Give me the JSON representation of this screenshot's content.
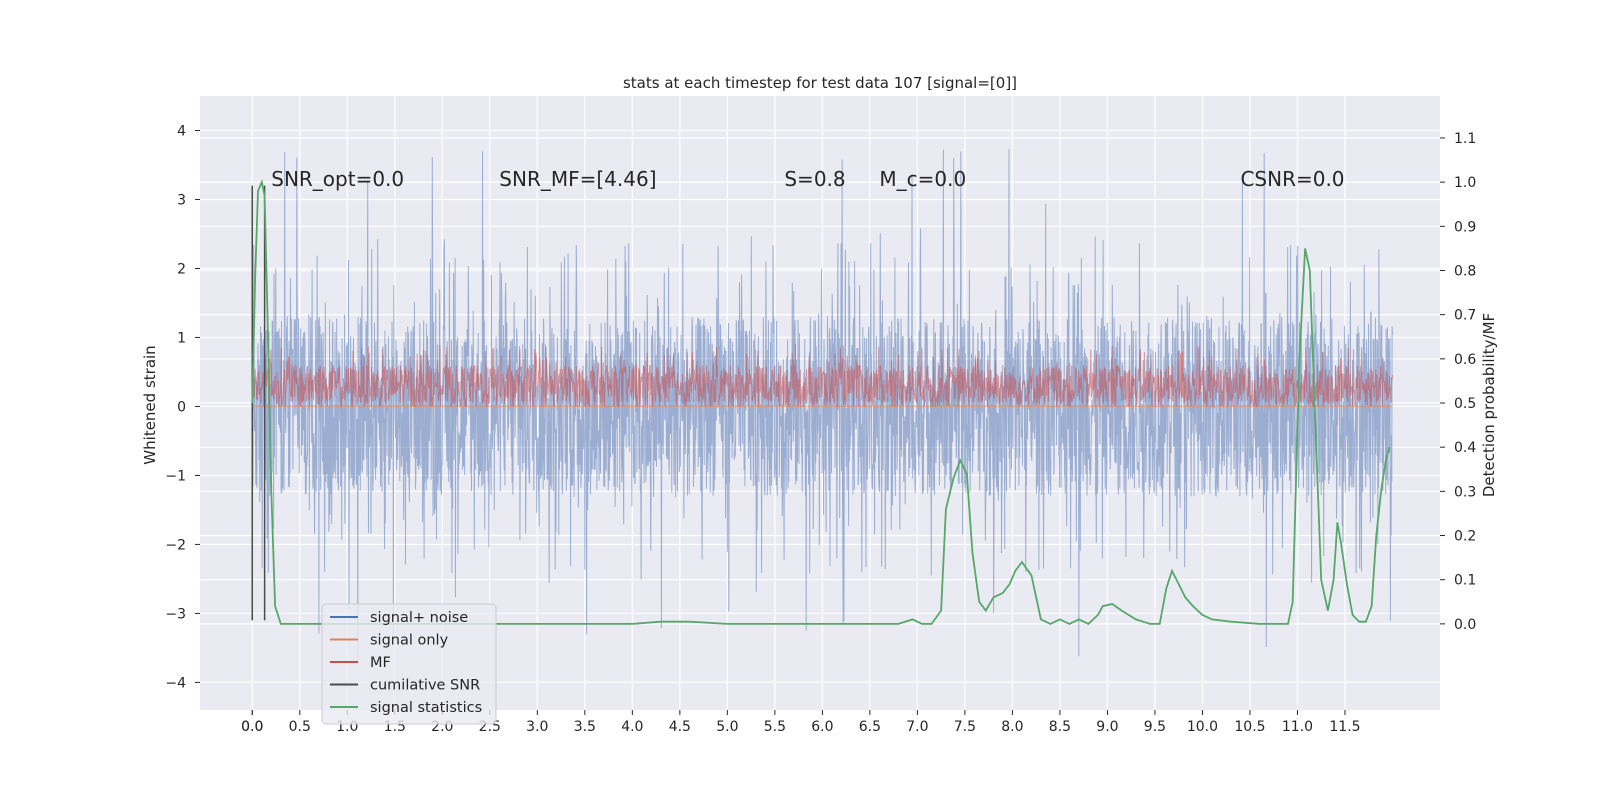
{
  "chart_data": {
    "type": "line",
    "title": "stats at each timestep for test data 107 [signal=[0]]",
    "xlabel": "",
    "ylabel": "Whitened strain",
    "y2label": "Detection probability/MF",
    "xlim": [
      -0.55,
      12.5
    ],
    "ylim": [
      -4.4,
      4.5
    ],
    "y2lim": [
      -0.195,
      1.195
    ],
    "xticks": [
      "0.0",
      "0.0",
      "0.5",
      "1.0",
      "1.5",
      "2.0",
      "2.5",
      "3.0",
      "3.5",
      "4.0",
      "4.5",
      "5.0",
      "5.5",
      "6.0",
      "6.5",
      "7.0",
      "7.5",
      "8.0",
      "8.5",
      "9.0",
      "9.5",
      "10.0",
      "10.5",
      "11.0",
      "11.5"
    ],
    "xtick_values": [
      0.0,
      0.0,
      0.5,
      1.0,
      1.5,
      2.0,
      2.5,
      3.0,
      3.5,
      4.0,
      4.5,
      5.0,
      5.5,
      6.0,
      6.5,
      7.0,
      7.5,
      8.0,
      8.5,
      9.0,
      9.5,
      10.0,
      10.5,
      11.0,
      11.5
    ],
    "yticks": [
      -4,
      -3,
      -2,
      -1,
      0,
      1,
      2,
      3,
      4
    ],
    "ytick_labels": [
      "−4",
      "−3",
      "−2",
      "−1",
      "0",
      "1",
      "2",
      "3",
      "4"
    ],
    "y2ticks": [
      0.0,
      0.1,
      0.2,
      0.3,
      0.4,
      0.5,
      0.6,
      0.7,
      0.8,
      0.9,
      1.0,
      1.1
    ],
    "y2tick_labels": [
      "0.0",
      "0.1",
      "0.2",
      "0.3",
      "0.4",
      "0.5",
      "0.6",
      "0.7",
      "0.8",
      "0.9",
      "1.0",
      "1.1"
    ],
    "grid": true,
    "legend_position": "lower-left",
    "annotations": [
      {
        "text": "SNR_opt=0.0",
        "x": 0.2,
        "y": 3.3
      },
      {
        "text": "SNR_MF=[4.46]",
        "x": 2.6,
        "y": 3.3
      },
      {
        "text": "S=0.8",
        "x": 5.6,
        "y": 3.3
      },
      {
        "text": "M_c=0.0",
        "x": 6.6,
        "y": 3.3
      },
      {
        "text": "CSNR=0.0",
        "x": 10.4,
        "y": 3.3
      }
    ],
    "series": [
      {
        "name": "signal+ noise",
        "color": "#4c72b0",
        "axis": "left",
        "type": "noise",
        "x_range": [
          0.0,
          12.0
        ],
        "y_core": [
          -1.3,
          1.3
        ],
        "y_extremes": [
          -4.0,
          4.1
        ]
      },
      {
        "name": "signal only",
        "color": "#dd8452",
        "axis": "left",
        "type": "flat",
        "x_range": [
          0.0,
          12.0
        ],
        "y": 0.0
      },
      {
        "name": "MF",
        "color": "#c44e52",
        "axis": "left",
        "type": "noise",
        "x_range": [
          0.0,
          12.0
        ],
        "y_core": [
          0.0,
          0.6
        ],
        "y_extremes": [
          0.0,
          0.95
        ]
      },
      {
        "name": "cumilative SNR",
        "color": "#4c4c4c",
        "axis": "left",
        "type": "vline",
        "x": [
          0.0,
          0.13
        ],
        "y_range": [
          -3.1,
          3.2
        ]
      },
      {
        "name": "signal statistics",
        "color": "#55a868",
        "axis": "right",
        "type": "line",
        "x": [
          0.0,
          0.03,
          0.06,
          0.1,
          0.13,
          0.16,
          0.2,
          0.24,
          0.3,
          0.4,
          0.6,
          1.0,
          2.0,
          3.0,
          4.0,
          4.3,
          4.6,
          5.0,
          6.0,
          6.8,
          6.95,
          7.05,
          7.15,
          7.25,
          7.3,
          7.38,
          7.45,
          7.52,
          7.58,
          7.65,
          7.72,
          7.8,
          7.9,
          7.97,
          8.03,
          8.1,
          8.2,
          8.3,
          8.4,
          8.5,
          8.6,
          8.7,
          8.8,
          8.9,
          8.95,
          9.05,
          9.15,
          9.3,
          9.45,
          9.55,
          9.62,
          9.68,
          9.75,
          9.82,
          9.9,
          10.0,
          10.1,
          10.3,
          10.6,
          10.9,
          10.95,
          11.02,
          11.08,
          11.13,
          11.18,
          11.25,
          11.32,
          11.38,
          11.42,
          11.46,
          11.52,
          11.58,
          11.65,
          11.72,
          11.78,
          11.83,
          11.88,
          11.93,
          11.97
        ],
        "y": [
          0.5,
          0.78,
          0.98,
          1.0,
          0.97,
          0.7,
          0.3,
          0.04,
          0.0,
          0.0,
          0.0,
          0.0,
          0.0,
          0.0,
          0.0,
          0.005,
          0.005,
          0.0,
          0.0,
          0.0,
          0.01,
          0.0,
          0.0,
          0.03,
          0.26,
          0.33,
          0.37,
          0.34,
          0.16,
          0.05,
          0.03,
          0.06,
          0.07,
          0.09,
          0.12,
          0.14,
          0.11,
          0.01,
          0.0,
          0.01,
          0.0,
          0.01,
          0.0,
          0.02,
          0.04,
          0.045,
          0.03,
          0.01,
          0.0,
          0.0,
          0.08,
          0.12,
          0.09,
          0.06,
          0.04,
          0.02,
          0.01,
          0.005,
          0.0,
          0.0,
          0.05,
          0.6,
          0.85,
          0.8,
          0.5,
          0.1,
          0.03,
          0.1,
          0.23,
          0.18,
          0.09,
          0.02,
          0.005,
          0.005,
          0.04,
          0.2,
          0.3,
          0.37,
          0.4
        ]
      }
    ]
  }
}
